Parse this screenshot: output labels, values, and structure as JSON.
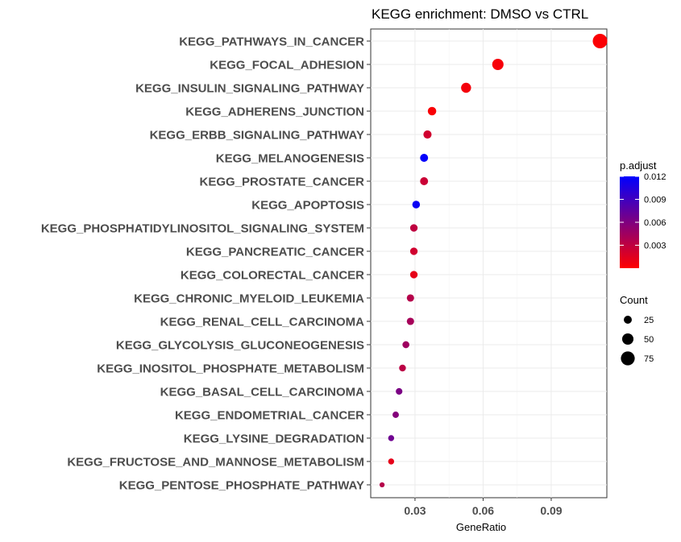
{
  "chart_data": {
    "type": "scatter",
    "title": "KEGG enrichment: DMSO vs CTRL",
    "xlabel": "GeneRatio",
    "ylabel": "",
    "xlim": [
      0.0105,
      0.1145
    ],
    "xticks": [
      0.03,
      0.06,
      0.09
    ],
    "xtick_labels": [
      "0.03",
      "0.06",
      "0.09"
    ],
    "grid": true,
    "legend_position": "right",
    "color_legend": {
      "title": "p.adjust",
      "range": [
        0.0,
        0.012
      ],
      "ticks": [
        0.003,
        0.006,
        0.009,
        0.012
      ],
      "tick_labels": [
        "0.003",
        "0.006",
        "0.009",
        "0.012"
      ],
      "low_color": "#ff0000",
      "high_color": "#0000ff"
    },
    "size_legend": {
      "title": "Count",
      "values": [
        25,
        50,
        75
      ],
      "labels": [
        "25",
        "50",
        "75"
      ]
    },
    "points": [
      {
        "term": "KEGG_PATHWAYS_IN_CANCER",
        "gene_ratio": 0.1115,
        "count": 83,
        "p_adjust": 0.0002
      },
      {
        "term": "KEGG_FOCAL_ADHESION",
        "gene_ratio": 0.0665,
        "count": 50,
        "p_adjust": 0.0004
      },
      {
        "term": "KEGG_INSULIN_SIGNALING_PATHWAY",
        "gene_ratio": 0.0525,
        "count": 39,
        "p_adjust": 0.0005
      },
      {
        "term": "KEGG_ADHERENS_JUNCTION",
        "gene_ratio": 0.0375,
        "count": 28,
        "p_adjust": 0.0003
      },
      {
        "term": "KEGG_ERBB_SIGNALING_PATHWAY",
        "gene_ratio": 0.0355,
        "count": 26,
        "p_adjust": 0.0022
      },
      {
        "term": "KEGG_MELANOGENESIS",
        "gene_ratio": 0.034,
        "count": 25,
        "p_adjust": 0.0118
      },
      {
        "term": "KEGG_PROSTATE_CANCER",
        "gene_ratio": 0.034,
        "count": 25,
        "p_adjust": 0.0025
      },
      {
        "term": "KEGG_APOPTOSIS",
        "gene_ratio": 0.0305,
        "count": 23,
        "p_adjust": 0.0115
      },
      {
        "term": "KEGG_PHOSPHATIDYLINOSITOL_SIGNALING_SYSTEM",
        "gene_ratio": 0.0295,
        "count": 22,
        "p_adjust": 0.003
      },
      {
        "term": "KEGG_PANCREATIC_CANCER",
        "gene_ratio": 0.0295,
        "count": 22,
        "p_adjust": 0.0022
      },
      {
        "term": "KEGG_COLORECTAL_CANCER",
        "gene_ratio": 0.0295,
        "count": 22,
        "p_adjust": 0.0012
      },
      {
        "term": "KEGG_CHRONIC_MYELOID_LEUKEMIA",
        "gene_ratio": 0.028,
        "count": 21,
        "p_adjust": 0.0035
      },
      {
        "term": "KEGG_RENAL_CELL_CARCINOMA",
        "gene_ratio": 0.028,
        "count": 21,
        "p_adjust": 0.0042
      },
      {
        "term": "KEGG_GLYCOLYSIS_GLUCONEOGENESIS",
        "gene_ratio": 0.026,
        "count": 19,
        "p_adjust": 0.0045
      },
      {
        "term": "KEGG_INOSITOL_PHOSPHATE_METABOLISM",
        "gene_ratio": 0.0245,
        "count": 18,
        "p_adjust": 0.0032
      },
      {
        "term": "KEGG_BASAL_CELL_CARCINOMA",
        "gene_ratio": 0.023,
        "count": 17,
        "p_adjust": 0.0062
      },
      {
        "term": "KEGG_ENDOMETRIAL_CANCER",
        "gene_ratio": 0.0215,
        "count": 16,
        "p_adjust": 0.0058
      },
      {
        "term": "KEGG_LYSINE_DEGRADATION",
        "gene_ratio": 0.0195,
        "count": 14,
        "p_adjust": 0.0068
      },
      {
        "term": "KEGG_FRUCTOSE_AND_MANNOSE_METABOLISM",
        "gene_ratio": 0.0195,
        "count": 14,
        "p_adjust": 0.0012
      },
      {
        "term": "KEGG_PENTOSE_PHOSPHATE_PATHWAY",
        "gene_ratio": 0.0155,
        "count": 10,
        "p_adjust": 0.0035
      }
    ]
  }
}
